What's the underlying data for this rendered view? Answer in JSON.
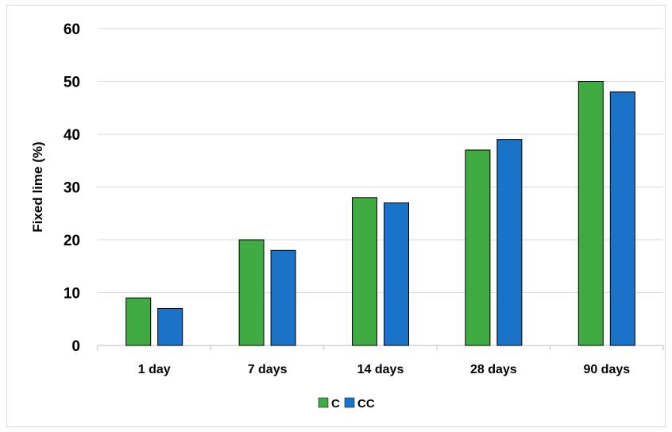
{
  "chart_data": {
    "type": "bar",
    "title": "",
    "xlabel": "",
    "ylabel": "Fixed lime (%)",
    "ylim": [
      0,
      60
    ],
    "yticks": [
      "0",
      "10",
      "20",
      "30",
      "40",
      "50",
      "60"
    ],
    "categories": [
      "1 day",
      "7 days",
      "14 days",
      "28 days",
      "90 days"
    ],
    "series": [
      {
        "name": "C",
        "values": [
          9,
          20,
          28,
          37,
          50
        ],
        "color": "#3faa3f"
      },
      {
        "name": "CC",
        "values": [
          7,
          18,
          27,
          39,
          48
        ],
        "color": "#1a73c8"
      }
    ],
    "grid": true,
    "legend_position": "bottom"
  }
}
